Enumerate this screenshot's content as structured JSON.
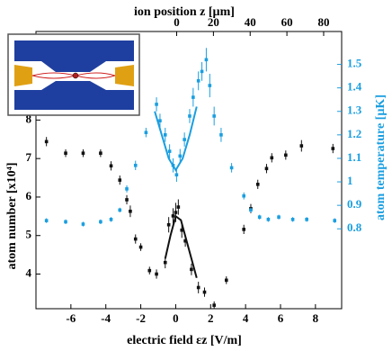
{
  "chart_data": {
    "type": "scatter",
    "xlabel": "electric field εz [V/m]",
    "x2label": "ion position z [µm]",
    "ylabel": "atom number [x10⁴]",
    "y2label": "atom temperature [µK]",
    "xlim": [
      -8,
      9.5
    ],
    "xticks": [
      -6,
      -4,
      -2,
      0,
      2,
      4,
      6,
      8
    ],
    "x2lim": [
      -76.6,
      89.8
    ],
    "x2ticks": [
      0,
      20,
      40,
      60,
      80
    ],
    "ylim": [
      3.1,
      10.3
    ],
    "yticks": [
      4,
      5,
      6,
      7,
      8
    ],
    "y2lim": [
      0.46,
      1.64
    ],
    "y2ticks": [
      0.8,
      0.9,
      1.0,
      1.1,
      1.2,
      1.3,
      1.4,
      1.5
    ],
    "y2_color": "#1a9ee0",
    "series": [
      {
        "type": "scatter",
        "color": "#111111",
        "axis": "y",
        "x": [
          -7.4,
          -6.3,
          -5.3,
          -4.3,
          -3.7,
          -3.2,
          -2.8,
          -2.6,
          -2.3,
          -2.0,
          -1.5,
          -1.1,
          -0.6,
          -0.4,
          -0.15,
          0,
          0.15,
          0.35,
          0.55,
          0.9,
          1.3,
          1.65,
          2.2,
          2.9,
          3.9,
          4.3,
          4.7,
          5.2,
          5.5,
          6.3,
          7.2,
          9.0
        ],
        "values": [
          7.44,
          7.14,
          7.14,
          7.14,
          6.81,
          6.44,
          5.93,
          5.63,
          4.91,
          4.7,
          4.09,
          4.0,
          4.3,
          5.28,
          5.51,
          5.6,
          5.74,
          5.14,
          4.86,
          4.12,
          3.65,
          3.53,
          3.19,
          3.84,
          5.16,
          5.7,
          6.33,
          6.74,
          7.02,
          7.09,
          7.33,
          7.26
        ],
        "errors": [
          0.12,
          0.1,
          0.1,
          0.1,
          0.12,
          0.12,
          0.12,
          0.15,
          0.12,
          0.1,
          0.1,
          0.12,
          0.15,
          0.2,
          0.2,
          0.25,
          0.2,
          0.2,
          0.15,
          0.15,
          0.15,
          0.12,
          0.1,
          0.1,
          0.12,
          0.12,
          0.12,
          0.12,
          0.12,
          0.12,
          0.15,
          0.12
        ]
      },
      {
        "type": "scatter",
        "color": "#1a9ee0",
        "axis": "y2",
        "x": [
          -7.4,
          -6.3,
          -5.3,
          -4.3,
          -3.7,
          -3.2,
          -2.8,
          -2.3,
          -1.7,
          -1.1,
          -0.9,
          -0.6,
          -0.35,
          -0.15,
          0.05,
          0.25,
          0.5,
          0.8,
          1.0,
          1.3,
          1.5,
          1.75,
          1.95,
          2.2,
          2.6,
          3.2,
          3.9,
          4.3,
          4.8,
          5.3,
          5.9,
          6.7,
          7.5,
          9.1
        ],
        "values": [
          0.835,
          0.83,
          0.82,
          0.83,
          0.84,
          0.88,
          0.97,
          1.07,
          1.21,
          1.33,
          1.26,
          1.2,
          1.13,
          1.07,
          1.03,
          1.11,
          1.18,
          1.28,
          1.36,
          1.43,
          1.47,
          1.52,
          1.41,
          1.28,
          1.2,
          1.06,
          0.94,
          0.88,
          0.85,
          0.84,
          0.85,
          0.84,
          0.84,
          0.835
        ],
        "errors": [
          0.01,
          0.01,
          0.01,
          0.01,
          0.01,
          0.01,
          0.015,
          0.02,
          0.02,
          0.03,
          0.03,
          0.03,
          0.03,
          0.03,
          0.03,
          0.03,
          0.03,
          0.03,
          0.04,
          0.04,
          0.04,
          0.05,
          0.05,
          0.04,
          0.03,
          0.02,
          0.015,
          0.01,
          0.01,
          0.01,
          0.01,
          0.01,
          0.01,
          0.01
        ]
      },
      {
        "type": "line",
        "color": "#111111",
        "axis": "y",
        "x": [
          -0.6,
          -0.3,
          0,
          0.3,
          0.6,
          0.9,
          1.2
        ],
        "values": [
          4.4,
          5.0,
          5.5,
          5.4,
          4.9,
          4.4,
          3.9
        ]
      },
      {
        "type": "line",
        "color": "#1a9ee0",
        "axis": "y2",
        "x": [
          -1.2,
          -0.8,
          -0.4,
          0,
          0.4,
          0.8,
          1.2
        ],
        "values": [
          1.3,
          1.2,
          1.1,
          1.05,
          1.1,
          1.2,
          1.32
        ]
      }
    ]
  }
}
